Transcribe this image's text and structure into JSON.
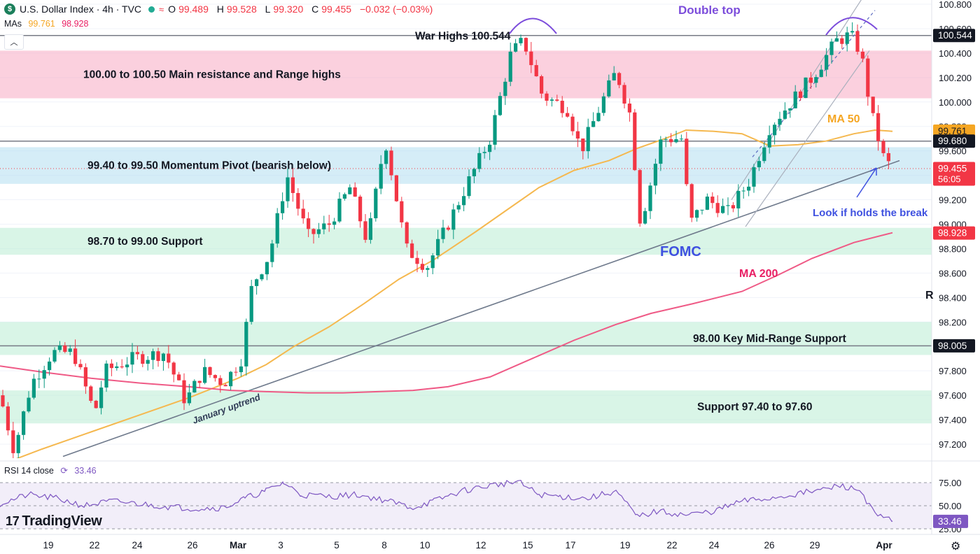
{
  "header": {
    "logo_letter": "$",
    "symbol": "U.S. Dollar Index · 4h · TVC",
    "wave_icon": "≈",
    "ohlc": {
      "o_label": "O",
      "o": "99.489",
      "h_label": "H",
      "h": "99.528",
      "l_label": "L",
      "l": "99.320",
      "c_label": "C",
      "c": "99.455",
      "change": "−0.032 (−0.03%)"
    },
    "mas_label": "MAs",
    "ma50_value": "99.761",
    "ma200_value": "98.928",
    "collapse_icon": "︿",
    "side_letter": "R"
  },
  "rsi": {
    "label": "RSI 14 close",
    "value": "33.46",
    "levels": [
      "75.00",
      "50.00",
      "25.00"
    ],
    "badge": "33.46"
  },
  "brand": {
    "name": "TradingView",
    "mark": "17"
  },
  "colors": {
    "up": "#089981",
    "down": "#f23645",
    "ma50": "#f5b84f",
    "ma200": "#ef5a86",
    "rsi": "#7e57c2",
    "annot_blue": "#3f51e0",
    "annot_purple": "#7c4ddb"
  },
  "chart_data": {
    "type": "candlestick",
    "symbol": "U.S. Dollar Index",
    "timeframe": "4h",
    "y_axis": {
      "min": 97.1,
      "max": 100.85,
      "ticks": [
        "100.800",
        "100.600",
        "100.400",
        "100.200",
        "100.000",
        "99.800",
        "99.600",
        "99.400",
        "99.200",
        "99.000",
        "98.800",
        "98.600",
        "98.400",
        "98.200",
        "98.000",
        "97.800",
        "97.600",
        "97.400",
        "97.200"
      ]
    },
    "x_axis": {
      "ticks": [
        "19",
        "22",
        "24",
        "26",
        "Mar",
        "3",
        "5",
        "8",
        "10",
        "12",
        "15",
        "17",
        "19",
        "22",
        "24",
        "26",
        "29",
        "Apr"
      ]
    },
    "price_labels": [
      {
        "text": "100.544",
        "value": 100.544,
        "kind": "level"
      },
      {
        "text": "99.761",
        "value": 99.761,
        "kind": "ma50"
      },
      {
        "text": "99.680",
        "value": 99.68,
        "kind": "level"
      },
      {
        "text": "99.455",
        "value": 99.455,
        "kind": "last",
        "countdown": "56:05"
      },
      {
        "text": "98.928",
        "value": 98.928,
        "kind": "ma200"
      },
      {
        "text": "98.005",
        "value": 98.005,
        "kind": "level"
      }
    ],
    "zones": [
      {
        "label": "100.00 to 100.50 Main resistance and Range highs",
        "low": 100.03,
        "high": 100.42,
        "color": "pink"
      },
      {
        "label": "99.40 to 99.50 Momentum Pivot (bearish below)",
        "low": 99.33,
        "high": 99.63,
        "color": "blue"
      },
      {
        "label": "98.70 to 99.00 Support",
        "low": 98.75,
        "high": 98.97,
        "color": "green"
      },
      {
        "label": "98.00 Key Mid-Range Support",
        "low": 97.93,
        "high": 98.2,
        "color": "green"
      },
      {
        "label": "Support 97.40 to 97.60",
        "low": 97.37,
        "high": 97.64,
        "color": "green"
      }
    ],
    "levels": [
      {
        "label": "War Highs 100.544",
        "value": 100.544
      },
      {
        "label": "",
        "value": 99.68
      },
      {
        "label": "",
        "value": 98.005
      }
    ],
    "annotations": [
      "Double top",
      "FOMC",
      "MA 50",
      "MA 200",
      "Look if holds the break",
      "January uptrend"
    ],
    "ma50": [
      [
        0,
        97.03
      ],
      [
        60,
        97.16
      ],
      [
        130,
        97.3
      ],
      [
        200,
        97.44
      ],
      [
        270,
        97.58
      ],
      [
        340,
        97.74
      ],
      [
        380,
        97.85
      ],
      [
        420,
        98.0
      ],
      [
        470,
        98.16
      ],
      [
        520,
        98.35
      ],
      [
        570,
        98.55
      ],
      [
        620,
        98.71
      ],
      [
        680,
        98.94
      ],
      [
        720,
        99.1
      ],
      [
        770,
        99.3
      ],
      [
        820,
        99.44
      ],
      [
        870,
        99.52
      ],
      [
        910,
        99.62
      ],
      [
        950,
        99.7
      ],
      [
        980,
        99.77
      ],
      [
        1020,
        99.76
      ],
      [
        1060,
        99.74
      ],
      [
        1100,
        99.64
      ],
      [
        1140,
        99.65
      ],
      [
        1180,
        99.68
      ],
      [
        1220,
        99.74
      ],
      [
        1250,
        99.77
      ],
      [
        1275,
        99.76
      ]
    ],
    "ma200": [
      [
        0,
        97.84
      ],
      [
        60,
        97.79
      ],
      [
        130,
        97.74
      ],
      [
        200,
        97.7
      ],
      [
        270,
        97.67
      ],
      [
        330,
        97.64
      ],
      [
        380,
        97.63
      ],
      [
        440,
        97.62
      ],
      [
        490,
        97.62
      ],
      [
        540,
        97.63
      ],
      [
        590,
        97.64
      ],
      [
        640,
        97.67
      ],
      [
        700,
        97.75
      ],
      [
        760,
        97.9
      ],
      [
        820,
        98.05
      ],
      [
        880,
        98.18
      ],
      [
        930,
        98.27
      ],
      [
        990,
        98.35
      ],
      [
        1060,
        98.45
      ],
      [
        1110,
        98.58
      ],
      [
        1160,
        98.72
      ],
      [
        1220,
        98.85
      ],
      [
        1275,
        98.93
      ]
    ],
    "rsi_series": [
      [
        0,
        52
      ],
      [
        40,
        62
      ],
      [
        80,
        58
      ],
      [
        120,
        50
      ],
      [
        160,
        55
      ],
      [
        200,
        52
      ],
      [
        240,
        49
      ],
      [
        280,
        47
      ],
      [
        320,
        48
      ],
      [
        350,
        58
      ],
      [
        380,
        66
      ],
      [
        405,
        75
      ],
      [
        430,
        62
      ],
      [
        470,
        60
      ],
      [
        510,
        62
      ],
      [
        550,
        56
      ],
      [
        590,
        48
      ],
      [
        620,
        55
      ],
      [
        660,
        66
      ],
      [
        700,
        72
      ],
      [
        740,
        76
      ],
      [
        770,
        62
      ],
      [
        800,
        60
      ],
      [
        840,
        58
      ],
      [
        880,
        66
      ],
      [
        910,
        38
      ],
      [
        940,
        44
      ],
      [
        980,
        40
      ],
      [
        1020,
        44
      ],
      [
        1060,
        55
      ],
      [
        1100,
        58
      ],
      [
        1140,
        63
      ],
      [
        1180,
        68
      ],
      [
        1200,
        72
      ],
      [
        1230,
        66
      ],
      [
        1250,
        40
      ],
      [
        1275,
        33.5
      ]
    ]
  }
}
